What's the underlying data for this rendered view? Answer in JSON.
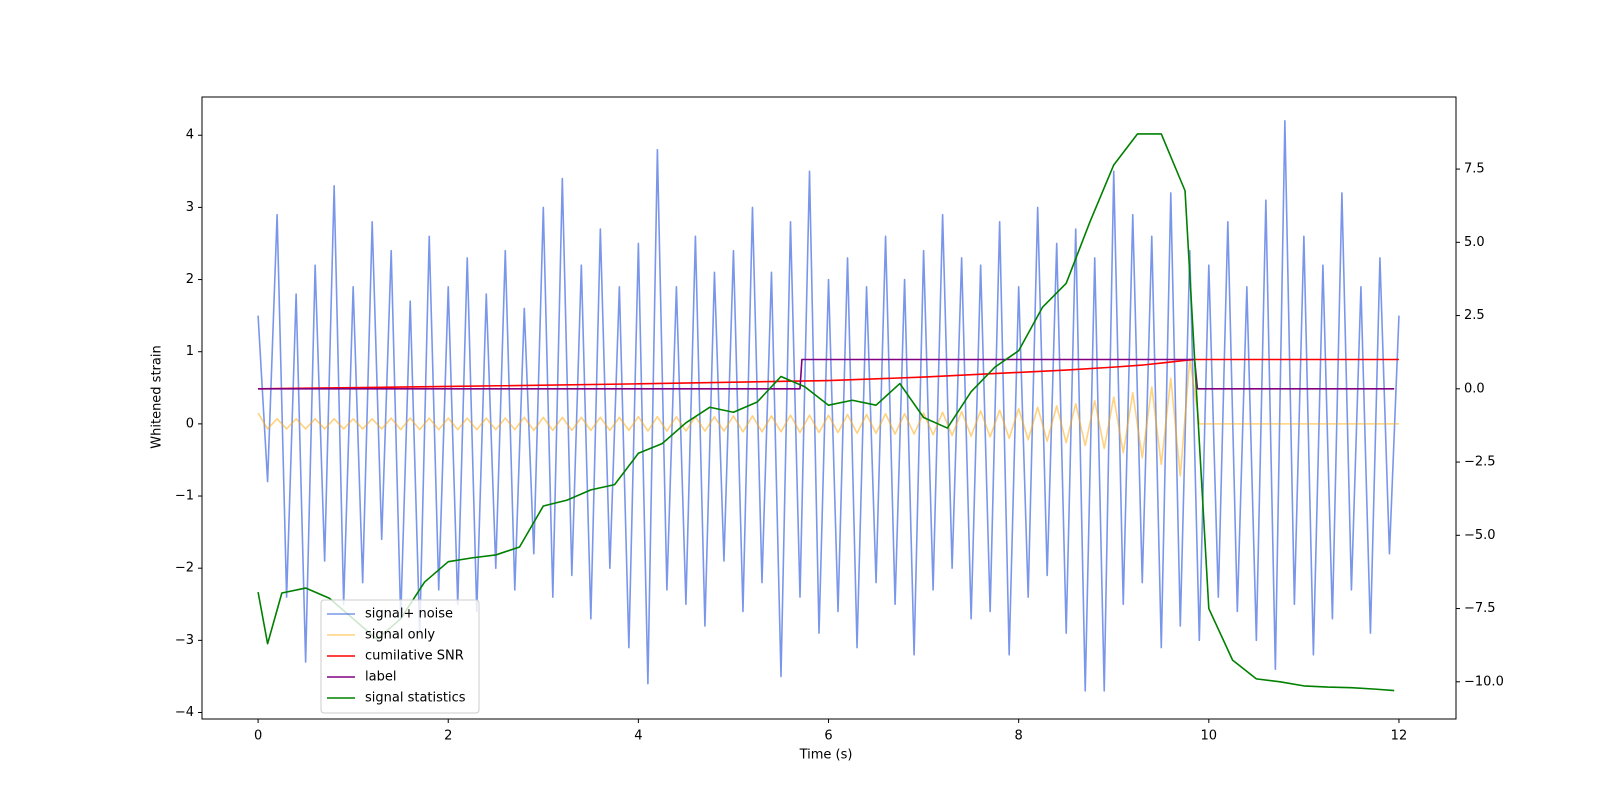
{
  "chart_data": {
    "type": "line",
    "xlabel": "Time (s)",
    "ylabel": "Whitened strain",
    "xlim": [
      -0.59,
      12.6
    ],
    "ylim": [
      -4.09,
      4.53
    ],
    "y2lim": [
      -11.27,
      9.96
    ],
    "xticks": [
      0,
      2,
      4,
      6,
      8,
      10,
      12
    ],
    "yticks": [
      {
        "value": -4,
        "label": "−4"
      },
      {
        "value": -3,
        "label": "−3"
      },
      {
        "value": -2,
        "label": "−2"
      },
      {
        "value": -1,
        "label": "−1"
      },
      0,
      1,
      2,
      3,
      4
    ],
    "y2ticks": [
      {
        "value": -10,
        "label": "−10.0"
      },
      {
        "value": -7.5,
        "label": "−7.5"
      },
      {
        "value": -5,
        "label": "−5.0"
      },
      {
        "value": -2.5,
        "label": "−2.5"
      },
      {
        "value": 0,
        "label": "0.0"
      },
      {
        "value": 2.5,
        "label": "2.5"
      },
      {
        "value": 5,
        "label": "5.0"
      },
      {
        "value": 7.5,
        "label": "7.5"
      }
    ],
    "legend": "lower left",
    "series": [
      {
        "name": "signal+ noise",
        "color": "#4169e1",
        "opacity": 0.7,
        "axis": "y",
        "x": [
          0,
          0.1,
          0.2,
          0.3,
          0.4,
          0.5,
          0.6,
          0.7,
          0.8,
          0.9,
          1,
          1.1,
          1.2,
          1.3,
          1.4,
          1.5,
          1.6,
          1.7,
          1.8,
          1.9,
          2,
          2.1,
          2.2,
          2.3,
          2.4,
          2.5,
          2.6,
          2.7,
          2.8,
          2.9,
          3,
          3.1,
          3.2,
          3.3,
          3.4,
          3.5,
          3.6,
          3.7,
          3.8,
          3.9,
          4,
          4.1,
          4.2,
          4.3,
          4.4,
          4.5,
          4.6,
          4.7,
          4.8,
          4.9,
          5,
          5.1,
          5.2,
          5.3,
          5.4,
          5.5,
          5.6,
          5.7,
          5.8,
          5.9,
          6,
          6.1,
          6.2,
          6.3,
          6.4,
          6.5,
          6.6,
          6.7,
          6.8,
          6.9,
          7,
          7.1,
          7.2,
          7.3,
          7.4,
          7.5,
          7.6,
          7.7,
          7.8,
          7.9,
          8,
          8.1,
          8.2,
          8.3,
          8.4,
          8.5,
          8.6,
          8.7,
          8.8,
          8.9,
          9,
          9.1,
          9.2,
          9.3,
          9.4,
          9.5,
          9.6,
          9.7,
          9.8,
          9.9,
          10,
          10.1,
          10.2,
          10.3,
          10.4,
          10.5,
          10.6,
          10.7,
          10.8,
          10.9,
          11,
          11.1,
          11.2,
          11.3,
          11.4,
          11.5,
          11.6,
          11.7,
          11.8,
          11.9,
          12
        ],
        "values": [
          1.5,
          -0.8,
          2.9,
          -2.4,
          1.8,
          -3.3,
          2.2,
          -1.9,
          3.3,
          -2.5,
          1.9,
          -2.2,
          2.8,
          -1.6,
          2.4,
          -2.7,
          1.7,
          -2.9,
          2.6,
          -2.3,
          1.9,
          -2.5,
          2.3,
          -2.6,
          1.8,
          -2.0,
          2.4,
          -2.3,
          1.6,
          -1.8,
          3.0,
          -2.4,
          3.4,
          -2.1,
          2.2,
          -2.7,
          2.7,
          -2.0,
          1.9,
          -3.1,
          2.5,
          -3.6,
          3.8,
          -2.3,
          1.9,
          -2.5,
          2.6,
          -2.8,
          2.1,
          -1.9,
          2.4,
          -2.6,
          3.0,
          -2.2,
          2.1,
          -3.5,
          2.8,
          -2.4,
          3.5,
          -2.9,
          2.0,
          -2.6,
          2.3,
          -3.1,
          1.9,
          -2.2,
          2.6,
          -2.5,
          2.0,
          -3.2,
          2.4,
          -2.3,
          2.9,
          -2.0,
          2.3,
          -2.7,
          2.2,
          -2.6,
          2.8,
          -3.2,
          1.9,
          -2.4,
          3.0,
          -2.1,
          2.5,
          -2.9,
          2.7,
          -3.7,
          2.3,
          -3.7,
          3.5,
          -2.5,
          2.9,
          -2.2,
          2.6,
          -3.1,
          3.2,
          -2.8,
          2.4,
          -3.0,
          2.2,
          -2.4,
          2.8,
          -2.6,
          1.9,
          -3.0,
          3.1,
          -3.4,
          4.2,
          -2.5,
          2.6,
          -3.2,
          2.2,
          -2.7,
          3.2,
          -2.3,
          1.9,
          -2.9,
          2.3,
          -1.8,
          1.5
        ]
      },
      {
        "name": "signal only",
        "color": "#ffa500",
        "opacity": 0.5,
        "axis": "y",
        "x": [
          0,
          0.1,
          0.2,
          0.3,
          0.4,
          0.5,
          0.6,
          0.7,
          0.8,
          0.9,
          1,
          1.1,
          1.2,
          1.3,
          1.4,
          1.5,
          1.6,
          1.7,
          1.8,
          1.9,
          2,
          2.1,
          2.2,
          2.3,
          2.4,
          2.5,
          2.6,
          2.7,
          2.8,
          2.9,
          3,
          3.1,
          3.2,
          3.3,
          3.4,
          3.5,
          3.6,
          3.7,
          3.8,
          3.9,
          4,
          4.1,
          4.2,
          4.3,
          4.4,
          4.5,
          4.6,
          4.7,
          4.8,
          4.9,
          5,
          5.1,
          5.2,
          5.3,
          5.4,
          5.5,
          5.6,
          5.7,
          5.8,
          5.9,
          6,
          6.1,
          6.2,
          6.3,
          6.4,
          6.5,
          6.6,
          6.7,
          6.8,
          6.9,
          7,
          7.1,
          7.2,
          7.3,
          7.4,
          7.5,
          7.6,
          7.7,
          7.8,
          7.9,
          8,
          8.1,
          8.2,
          8.3,
          8.4,
          8.5,
          8.6,
          8.7,
          8.8,
          8.9,
          9,
          9.1,
          9.2,
          9.3,
          9.4,
          9.5,
          9.6,
          9.7,
          9.8,
          9.9,
          12
        ],
        "values": [
          0.15,
          -0.07,
          0.07,
          -0.07,
          0.07,
          -0.07,
          0.07,
          -0.07,
          0.07,
          -0.07,
          0.07,
          -0.07,
          0.07,
          -0.07,
          0.08,
          -0.08,
          0.08,
          -0.08,
          0.08,
          -0.08,
          0.08,
          -0.08,
          0.08,
          -0.08,
          0.08,
          -0.08,
          0.08,
          -0.08,
          0.09,
          -0.09,
          0.09,
          -0.09,
          0.09,
          -0.09,
          0.09,
          -0.09,
          0.09,
          -0.09,
          0.09,
          -0.09,
          0.1,
          -0.1,
          0.1,
          -0.1,
          0.1,
          -0.1,
          0.1,
          -0.1,
          0.1,
          -0.1,
          0.11,
          -0.11,
          0.11,
          -0.11,
          0.11,
          -0.11,
          0.12,
          -0.12,
          0.12,
          -0.12,
          0.12,
          -0.12,
          0.13,
          -0.13,
          0.13,
          -0.13,
          0.14,
          -0.14,
          0.14,
          -0.14,
          0.15,
          -0.15,
          0.16,
          -0.16,
          0.17,
          -0.17,
          0.18,
          -0.18,
          0.19,
          -0.2,
          0.21,
          -0.22,
          0.23,
          -0.24,
          0.25,
          -0.26,
          0.28,
          -0.3,
          0.32,
          -0.34,
          0.37,
          -0.4,
          0.43,
          -0.47,
          0.51,
          -0.56,
          0.63,
          -0.72,
          0.9,
          0,
          0
        ]
      },
      {
        "name": "cumilative SNR",
        "color": "#ff0000",
        "axis": "y2",
        "x": [
          0,
          2,
          4,
          6,
          7,
          8,
          8.5,
          9,
          9.3,
          9.5,
          9.7,
          9.85,
          12
        ],
        "values": [
          0,
          0.08,
          0.17,
          0.28,
          0.4,
          0.56,
          0.64,
          0.74,
          0.81,
          0.88,
          0.95,
          1,
          1
        ]
      },
      {
        "name": "label",
        "color": "#800080",
        "axis": "y2",
        "x": [
          0,
          5.7,
          5.72,
          9.85,
          9.88,
          11.95
        ],
        "values": [
          0,
          0,
          1,
          1,
          0,
          0
        ]
      },
      {
        "name": "signal statistics",
        "color": "#008000",
        "axis": "y2",
        "x": [
          0,
          0.1,
          0.25,
          0.5,
          0.75,
          1,
          1.25,
          1.5,
          1.75,
          2,
          2.25,
          2.5,
          2.75,
          3,
          3.25,
          3.5,
          3.75,
          4,
          4.25,
          4.5,
          4.75,
          5,
          5.25,
          5.5,
          5.75,
          6,
          6.25,
          6.5,
          6.75,
          7,
          7.25,
          7.5,
          7.75,
          8,
          8.25,
          8.5,
          8.75,
          9,
          9.25,
          9.5,
          9.75,
          10,
          10.25,
          10.5,
          10.75,
          11,
          11.25,
          11.5,
          11.75,
          11.95
        ],
        "values": [
          -6.94,
          -8.7,
          -6.97,
          -6.8,
          -7.15,
          -7.85,
          -8.55,
          -7.85,
          -6.6,
          -5.9,
          -5.77,
          -5.67,
          -5.4,
          -4.0,
          -3.8,
          -3.45,
          -3.27,
          -2.2,
          -1.87,
          -1.16,
          -0.63,
          -0.8,
          -0.45,
          0.42,
          0.07,
          -0.56,
          -0.39,
          -0.56,
          0.18,
          -0.98,
          -1.34,
          -0.1,
          0.74,
          1.3,
          2.78,
          3.6,
          5.7,
          7.64,
          8.7,
          8.7,
          6.76,
          -7.5,
          -9.26,
          -9.9,
          -10.0,
          -10.14,
          -10.18,
          -10.2,
          -10.25,
          -10.3
        ]
      }
    ]
  }
}
